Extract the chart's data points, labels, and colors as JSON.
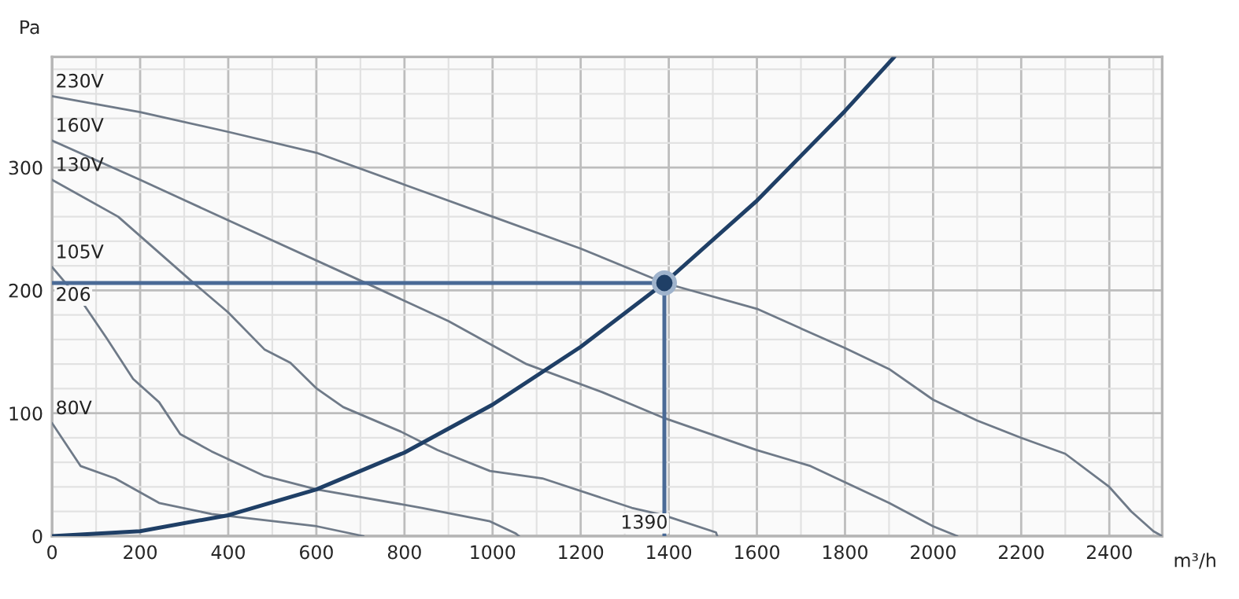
{
  "chart_data": {
    "type": "line",
    "xlabel": "m³/h",
    "ylabel": "Pa",
    "xlim": [
      0,
      2520
    ],
    "ylim": [
      0,
      390
    ],
    "xticks": [
      0,
      200,
      400,
      600,
      800,
      1000,
      1200,
      1400,
      1600,
      1800,
      2000,
      2200,
      2400
    ],
    "yticks": [
      0,
      100,
      200,
      300
    ],
    "grid": true,
    "legend": false,
    "marker": "none",
    "line_style": "solid",
    "series": [
      {
        "name": "230V",
        "color": "#6f7a88",
        "x": [
          0,
          200,
          400,
          600,
          800,
          1000,
          1200,
          1390,
          1600,
          1800,
          1900,
          2000,
          2100,
          2200,
          2300,
          2400,
          2450,
          2500,
          2520
        ],
        "values": [
          358,
          345,
          329,
          312,
          286,
          260,
          234,
          206,
          185,
          153,
          136,
          111,
          94,
          80,
          67,
          40,
          20,
          4,
          0
        ]
      },
      {
        "name": "160V",
        "color": "#6f7a88",
        "x": [
          0,
          200,
          400,
          700,
          900,
          1077,
          1250,
          1390,
          1600,
          1722,
          1900,
          2000,
          2055
        ],
        "values": [
          322,
          290,
          257,
          208,
          175,
          140,
          117,
          96,
          70,
          57,
          27,
          8,
          0
        ]
      },
      {
        "name": "130V",
        "color": "#6f7a88",
        "x": [
          0,
          150,
          315,
          400,
          482,
          541,
          601,
          661,
          792,
          875,
          994,
          1113,
          1316,
          1388,
          1507,
          1510
        ],
        "values": [
          290,
          260,
          208,
          182,
          152,
          141,
          120,
          105,
          85,
          70,
          53,
          47,
          23,
          17,
          3,
          0
        ]
      },
      {
        "name": "105V",
        "color": "#6f7a88",
        "x": [
          0,
          71,
          124,
          184,
          243,
          291,
          362,
          482,
          601,
          839,
          994,
          1053,
          1060
        ],
        "values": [
          219,
          189,
          161,
          128,
          109,
          83,
          69,
          49,
          38,
          23,
          12,
          2,
          0
        ]
      },
      {
        "name": "80V",
        "color": "#6f7a88",
        "x": [
          0,
          65,
          143,
          243,
          362,
          601,
          707
        ],
        "values": [
          92,
          57,
          47,
          27,
          18,
          8,
          0
        ]
      },
      {
        "color": "#1f3f66",
        "x": [
          0,
          200,
          400,
          600,
          800,
          1000,
          1200,
          1390,
          1600,
          1800,
          1912
        ],
        "values": [
          0,
          4,
          17,
          38,
          68,
          107,
          154,
          206,
          273,
          346,
          390
        ]
      },
      {
        "color": "#4a6a96",
        "x": [
          0,
          1390,
          1390
        ],
        "values": [
          206,
          206,
          0
        ]
      },
      {
        "type": "scatter",
        "marker": "circle",
        "color": "#1f3f66",
        "x": [
          1390
        ],
        "values": [
          206
        ]
      }
    ],
    "annotations": [
      {
        "text": "206",
        "x": 0,
        "y": 206
      },
      {
        "text": "1390",
        "x": 1390,
        "y": 0
      }
    ]
  }
}
